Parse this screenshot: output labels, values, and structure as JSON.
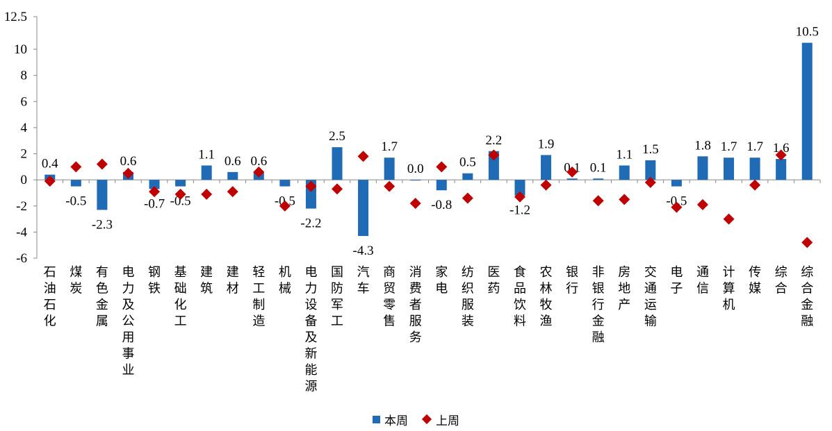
{
  "chart_data": {
    "type": "bar",
    "categories": [
      "石油石化",
      "煤炭",
      "有色金属",
      "电力及公用事业",
      "钢铁",
      "基础化工",
      "建筑",
      "建材",
      "轻工制造",
      "机械",
      "电力设备及新能源",
      "国防军工",
      "汽车",
      "商贸零售",
      "消费者服务",
      "家电",
      "纺织服装",
      "医药",
      "食品饮料",
      "农林牧渔",
      "银行",
      "非银行金融",
      "房地产",
      "交通运输",
      "电子",
      "通信",
      "计算机",
      "传媒",
      "综合",
      "综合金融"
    ],
    "series": [
      {
        "name": "本周",
        "type": "bar",
        "color": "#1F6BB5",
        "values": [
          0.4,
          -0.5,
          -2.3,
          0.6,
          -0.7,
          -0.5,
          1.1,
          0.6,
          0.6,
          -0.5,
          -2.2,
          2.5,
          -4.3,
          1.7,
          0.0,
          -0.8,
          0.5,
          2.2,
          -1.2,
          1.9,
          0.1,
          0.1,
          1.1,
          1.5,
          -0.5,
          1.8,
          1.7,
          1.7,
          1.6,
          10.5
        ],
        "labels": [
          "0.4",
          "-0.5",
          "-2.3",
          "0.6",
          "-0.7",
          "-0.5",
          "1.1",
          "0.6",
          "0.6",
          "-0.5",
          "-2.2",
          "2.5",
          "-4.3",
          "1.7",
          "0.0",
          "-0.8",
          "0.5",
          "2.2",
          "-1.2",
          "1.9",
          "0.1",
          "0.1",
          "1.1",
          "1.5",
          "-0.5",
          "1.8",
          "1.7",
          "1.7",
          "1.6",
          "10.5"
        ]
      },
      {
        "name": "上周",
        "type": "scatter",
        "marker": "diamond",
        "color": "#C00000",
        "values": [
          -0.1,
          1.0,
          1.2,
          0.5,
          -0.9,
          -1.1,
          -1.1,
          -0.9,
          0.6,
          -2.0,
          -0.5,
          -0.7,
          1.8,
          -0.5,
          -1.8,
          1.0,
          -1.4,
          1.9,
          -1.3,
          -0.4,
          0.6,
          -1.6,
          -1.5,
          -0.2,
          -2.1,
          -1.9,
          -3.0,
          -0.4,
          1.9,
          -4.8
        ]
      }
    ],
    "ylim": [
      -6,
      12.5
    ],
    "yticks": [
      "-6",
      "-4",
      "-2",
      "0",
      "2",
      "4",
      "6",
      "8",
      "10",
      "12.5"
    ],
    "ytick_values": [
      -6,
      -4,
      -2,
      0,
      2,
      4,
      6,
      8,
      10,
      12.5
    ],
    "legend": "bottom-center",
    "grid": false
  }
}
